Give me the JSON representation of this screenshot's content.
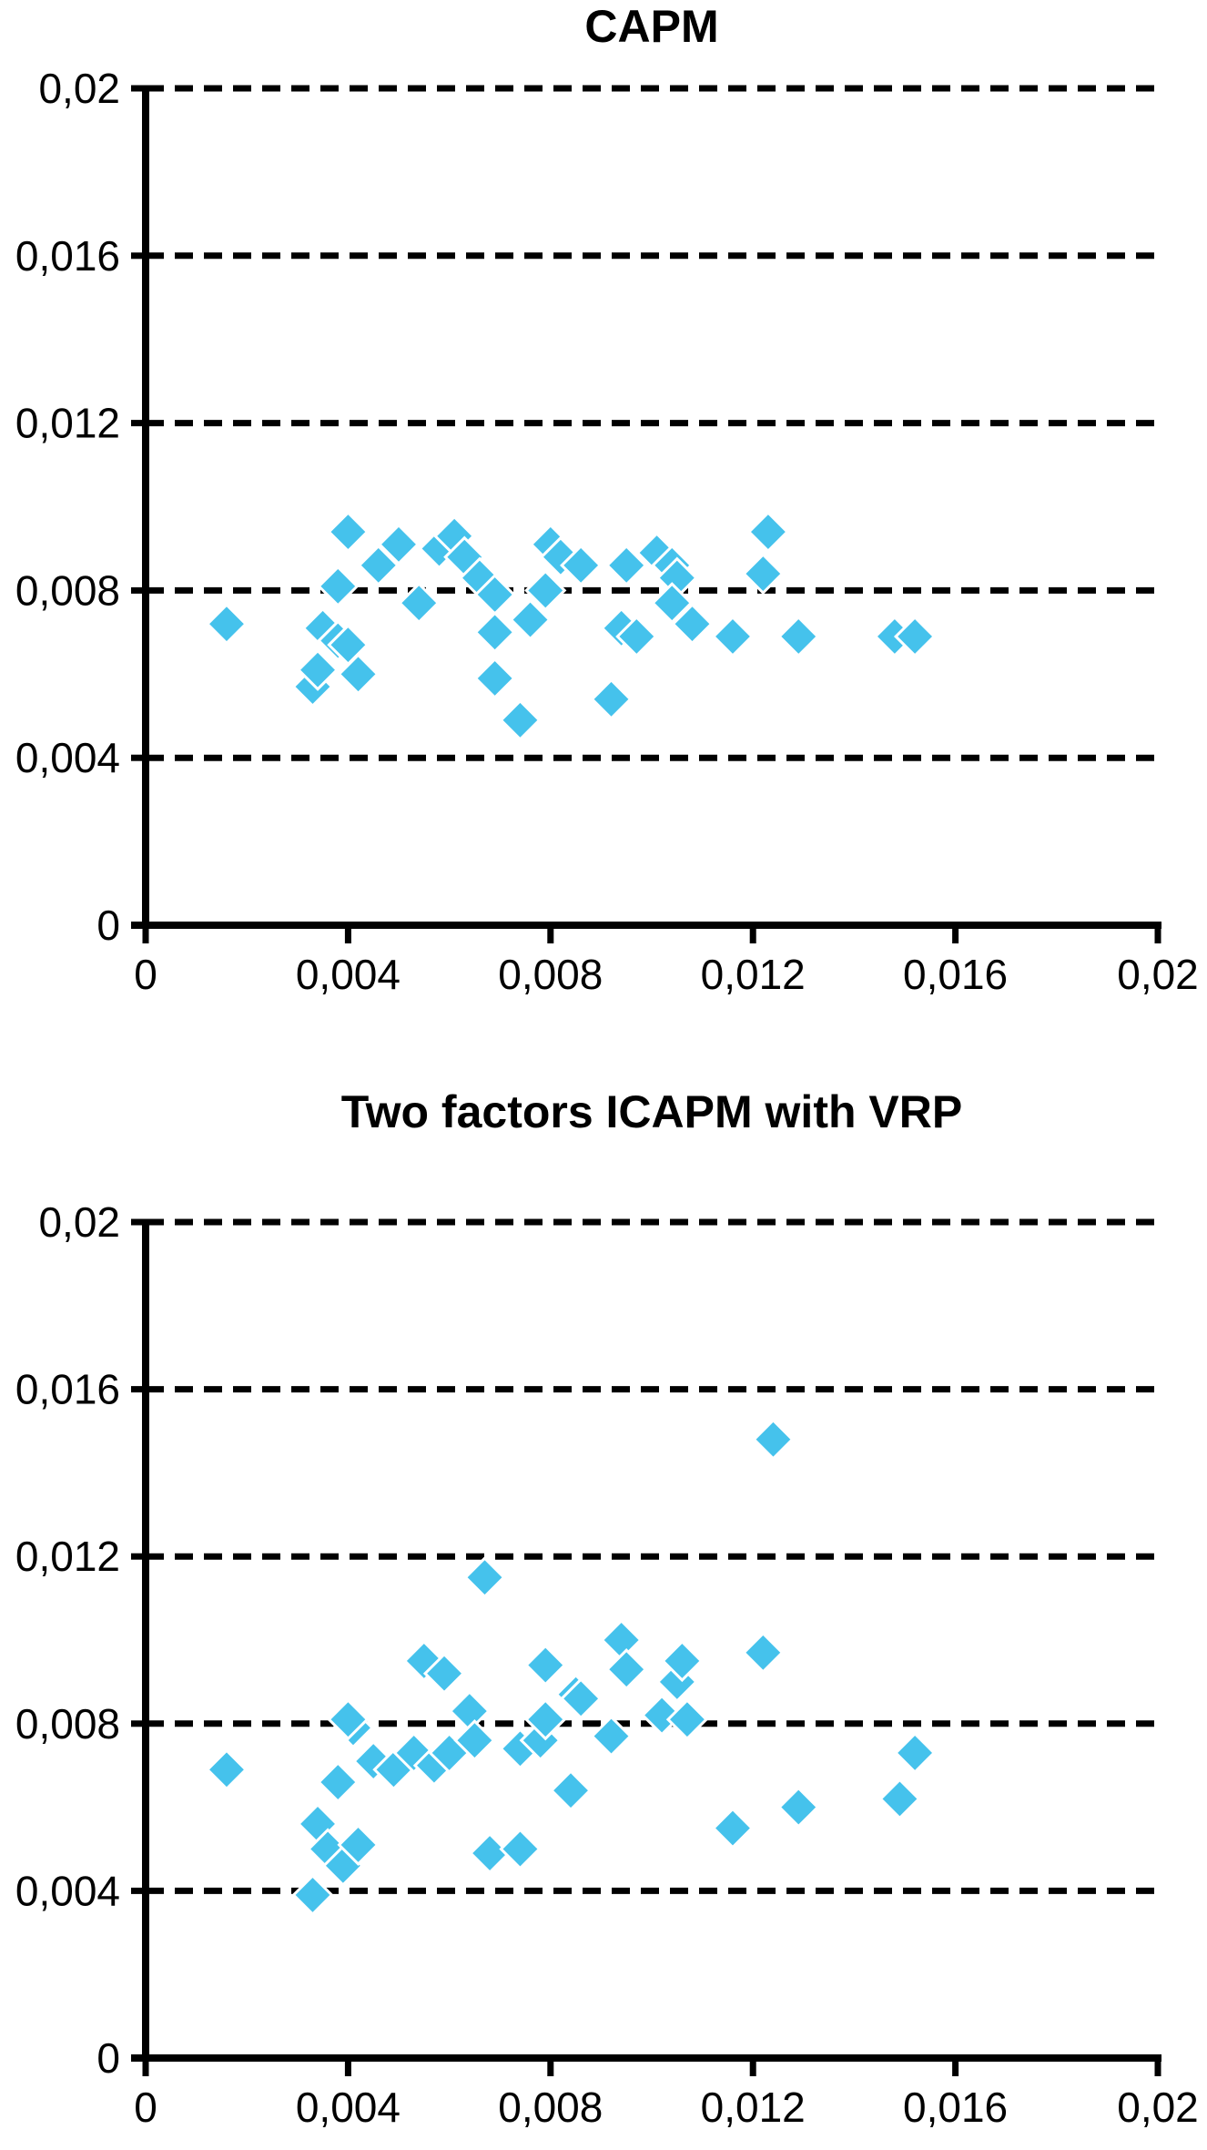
{
  "page": {
    "background": "#ffffff",
    "text_color": "#000000"
  },
  "chart_data": [
    {
      "type": "scatter",
      "title": "CAPM",
      "xlabel": "",
      "ylabel": "",
      "xlim": [
        0,
        0.02
      ],
      "ylim": [
        0,
        0.02
      ],
      "x_tick_values": [
        0,
        0.004,
        0.008,
        0.012,
        0.016,
        0.02
      ],
      "x_tick_labels": [
        "0",
        "0,004",
        "0,008",
        "0,012",
        "0,016",
        "0,02"
      ],
      "y_tick_values": [
        0,
        0.004,
        0.008,
        0.012,
        0.016,
        0.02
      ],
      "y_tick_labels": [
        "0",
        "0,004",
        "0,008",
        "0,012",
        "0,016",
        "0,02"
      ],
      "grid": "horizontal-dashed",
      "legend": "none",
      "marker": "diamond",
      "marker_color": "#45C2EC",
      "points": [
        [
          0.0016,
          0.0072
        ],
        [
          0.0033,
          0.0057
        ],
        [
          0.0034,
          0.0061
        ],
        [
          0.0035,
          0.0071
        ],
        [
          0.0038,
          0.0081
        ],
        [
          0.0038,
          0.0068
        ],
        [
          0.004,
          0.0094
        ],
        [
          0.004,
          0.0067
        ],
        [
          0.0042,
          0.006
        ],
        [
          0.0046,
          0.0086
        ],
        [
          0.005,
          0.0091
        ],
        [
          0.0054,
          0.0077
        ],
        [
          0.0058,
          0.009
        ],
        [
          0.0061,
          0.0093
        ],
        [
          0.0063,
          0.0088
        ],
        [
          0.0066,
          0.0083
        ],
        [
          0.0069,
          0.0079
        ],
        [
          0.0069,
          0.007
        ],
        [
          0.0069,
          0.0059
        ],
        [
          0.0074,
          0.0049
        ],
        [
          0.0076,
          0.0073
        ],
        [
          0.0079,
          0.008
        ],
        [
          0.008,
          0.0091
        ],
        [
          0.0082,
          0.0088
        ],
        [
          0.0086,
          0.0086
        ],
        [
          0.0092,
          0.0054
        ],
        [
          0.0094,
          0.0071
        ],
        [
          0.0097,
          0.0069
        ],
        [
          0.0095,
          0.0086
        ],
        [
          0.0101,
          0.0089
        ],
        [
          0.0104,
          0.0086
        ],
        [
          0.0105,
          0.0083
        ],
        [
          0.0104,
          0.0077
        ],
        [
          0.0108,
          0.0072
        ],
        [
          0.0116,
          0.0069
        ],
        [
          0.0122,
          0.0084
        ],
        [
          0.0123,
          0.0094
        ],
        [
          0.0129,
          0.0069
        ],
        [
          0.0148,
          0.0069
        ],
        [
          0.0152,
          0.0069
        ]
      ]
    },
    {
      "type": "scatter",
      "title": "Two factors ICAPM with VRP",
      "xlabel": "",
      "ylabel": "",
      "xlim": [
        0,
        0.02
      ],
      "ylim": [
        0,
        0.02
      ],
      "x_tick_values": [
        0,
        0.004,
        0.008,
        0.012,
        0.016,
        0.02
      ],
      "x_tick_labels": [
        "0",
        "0,004",
        "0,008",
        "0,012",
        "0,016",
        "0,02"
      ],
      "y_tick_values": [
        0,
        0.004,
        0.008,
        0.012,
        0.016,
        0.02
      ],
      "y_tick_labels": [
        "0",
        "0,004",
        "0,008",
        "0,012",
        "0,016",
        "0,02"
      ],
      "grid": "horizontal-dashed",
      "legend": "none",
      "marker": "diamond",
      "marker_color": "#45C2EC",
      "points": [
        [
          0.0016,
          0.0069
        ],
        [
          0.0033,
          0.0039
        ],
        [
          0.0034,
          0.0056
        ],
        [
          0.0036,
          0.005
        ],
        [
          0.0039,
          0.0046
        ],
        [
          0.0042,
          0.0051
        ],
        [
          0.0038,
          0.0066
        ],
        [
          0.0041,
          0.0079
        ],
        [
          0.004,
          0.0081
        ],
        [
          0.0045,
          0.0071
        ],
        [
          0.0049,
          0.0069
        ],
        [
          0.0053,
          0.0073
        ],
        [
          0.0055,
          0.0095
        ],
        [
          0.0057,
          0.007
        ],
        [
          0.0059,
          0.0092
        ],
        [
          0.006,
          0.0073
        ],
        [
          0.0064,
          0.0083
        ],
        [
          0.0065,
          0.0076
        ],
        [
          0.0067,
          0.0115
        ],
        [
          0.0068,
          0.0049
        ],
        [
          0.0074,
          0.005
        ],
        [
          0.0074,
          0.0074
        ],
        [
          0.0078,
          0.0076
        ],
        [
          0.0079,
          0.0081
        ],
        [
          0.0079,
          0.0094
        ],
        [
          0.0084,
          0.0064
        ],
        [
          0.0085,
          0.0087
        ],
        [
          0.0086,
          0.0086
        ],
        [
          0.0092,
          0.0077
        ],
        [
          0.0094,
          0.01
        ],
        [
          0.0095,
          0.0093
        ],
        [
          0.0102,
          0.0082
        ],
        [
          0.0105,
          0.009
        ],
        [
          0.0106,
          0.0095
        ],
        [
          0.0107,
          0.0081
        ],
        [
          0.0116,
          0.0055
        ],
        [
          0.0122,
          0.0097
        ],
        [
          0.0124,
          0.0148
        ],
        [
          0.0129,
          0.006
        ],
        [
          0.0149,
          0.0062
        ],
        [
          0.0152,
          0.0073
        ]
      ]
    }
  ]
}
